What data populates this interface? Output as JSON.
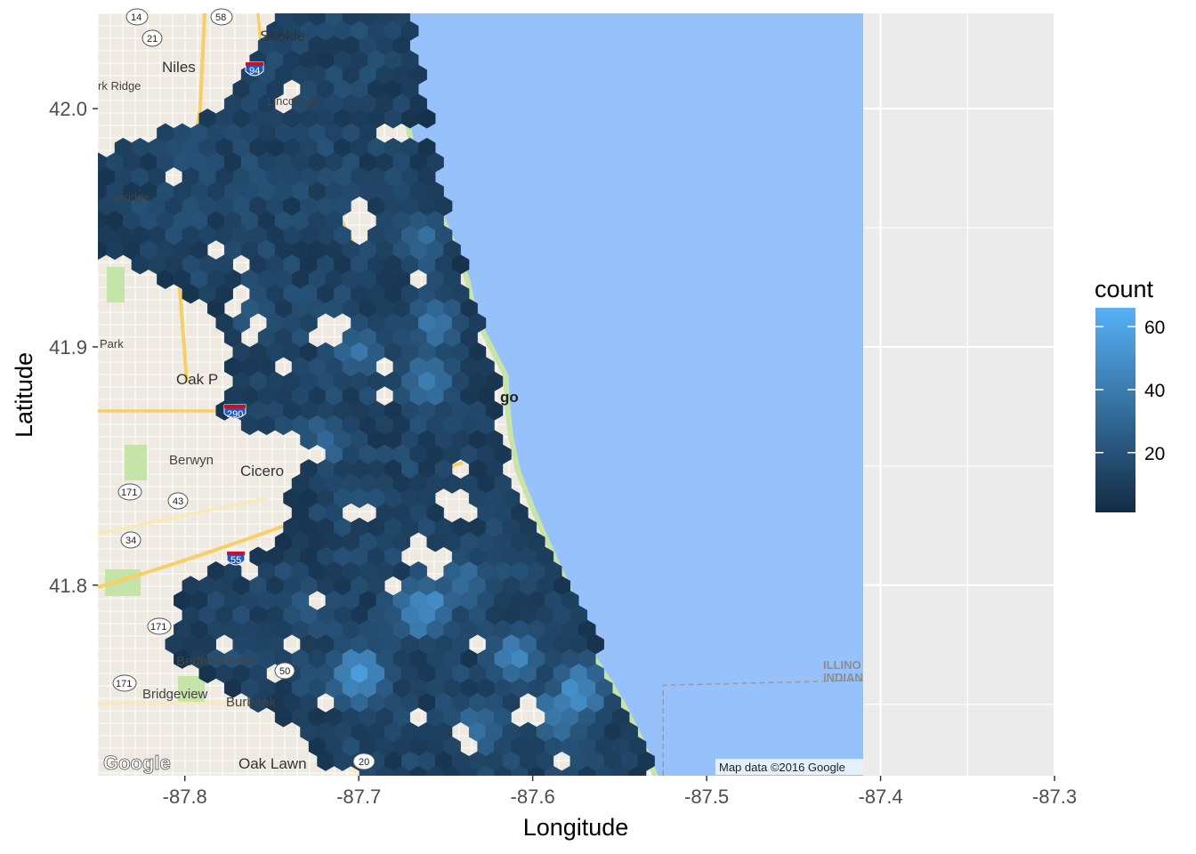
{
  "chart_data": {
    "type": "heatmap",
    "subtype": "hexbin-over-map",
    "xlabel": "Longitude",
    "ylabel": "Latitude",
    "xlim": [
      -87.85,
      -87.3
    ],
    "ylim": [
      41.72,
      42.04
    ],
    "x_ticks": [
      -87.8,
      -87.7,
      -87.6,
      -87.5,
      -87.4,
      -87.3
    ],
    "y_ticks": [
      41.8,
      41.9,
      42.0
    ],
    "x_tick_labels": [
      "-87.8",
      "-87.7",
      "-87.6",
      "-87.5",
      "-87.4",
      "-87.3"
    ],
    "y_tick_labels": [
      "41.8",
      "41.9",
      "42.0"
    ],
    "legend": {
      "title": "count",
      "placement": "right",
      "breaks": [
        20,
        40,
        60
      ],
      "break_labels": [
        "20",
        "40",
        "60"
      ],
      "range": [
        1,
        66
      ],
      "low_color": "#132B43",
      "high_color": "#56B1F7"
    },
    "map_extent": {
      "lon": [
        -87.85,
        -87.41
      ],
      "lat": [
        41.72,
        42.04
      ]
    },
    "hex_radius_lon": 0.0056,
    "region": {
      "west_edge": [
        [
          42.04,
          -87.75
        ],
        [
          42.0,
          -87.78
        ],
        [
          41.98,
          -87.85
        ],
        [
          41.94,
          -87.85
        ],
        [
          41.92,
          -87.79
        ],
        [
          41.9,
          -87.77
        ],
        [
          41.87,
          -87.78
        ],
        [
          41.86,
          -87.73
        ],
        [
          41.84,
          -87.74
        ],
        [
          41.82,
          -87.74
        ],
        [
          41.8,
          -87.8
        ],
        [
          41.77,
          -87.81
        ],
        [
          41.74,
          -87.74
        ],
        [
          41.72,
          -87.71
        ]
      ],
      "east_edge": [
        [
          42.04,
          -87.67
        ],
        [
          42.0,
          -87.66
        ],
        [
          41.96,
          -87.65
        ],
        [
          41.92,
          -87.635
        ],
        [
          41.9,
          -87.625
        ],
        [
          41.88,
          -87.62
        ],
        [
          41.85,
          -87.615
        ],
        [
          41.82,
          -87.595
        ],
        [
          41.79,
          -87.57
        ],
        [
          41.76,
          -87.555
        ],
        [
          41.74,
          -87.545
        ],
        [
          41.72,
          -87.53
        ]
      ]
    },
    "hotspots": [
      {
        "lon": -87.655,
        "lat": 41.91,
        "count": 45
      },
      {
        "lon": -87.662,
        "lat": 41.945,
        "count": 42
      },
      {
        "lon": -87.66,
        "lat": 41.886,
        "count": 50
      },
      {
        "lon": -87.7,
        "lat": 41.898,
        "count": 40
      },
      {
        "lon": -87.765,
        "lat": 41.91,
        "count": 30
      },
      {
        "lon": -87.663,
        "lat": 41.79,
        "count": 60
      },
      {
        "lon": -87.7,
        "lat": 41.762,
        "count": 64
      },
      {
        "lon": -87.57,
        "lat": 41.757,
        "count": 62
      },
      {
        "lon": -87.61,
        "lat": 41.77,
        "count": 48
      },
      {
        "lon": -87.585,
        "lat": 41.745,
        "count": 50
      },
      {
        "lon": -87.64,
        "lat": 41.8,
        "count": 40
      },
      {
        "lon": -87.72,
        "lat": 41.86,
        "count": 38
      },
      {
        "lon": -87.63,
        "lat": 41.74,
        "count": 42
      },
      {
        "lon": -87.73,
        "lat": 41.79,
        "count": 30
      }
    ],
    "holes": [
      {
        "lon": -87.672,
        "lat": 41.99
      },
      {
        "lon": -87.7,
        "lat": 41.95
      },
      {
        "lon": -87.77,
        "lat": 41.92
      },
      {
        "lon": -87.715,
        "lat": 41.905
      },
      {
        "lon": -87.645,
        "lat": 41.832
      },
      {
        "lon": -87.668,
        "lat": 41.815
      },
      {
        "lon": -87.658,
        "lat": 41.808
      },
      {
        "lon": -87.738,
        "lat": 41.775
      },
      {
        "lon": -87.7,
        "lat": 41.83
      },
      {
        "lon": -87.76,
        "lat": 41.905
      }
    ]
  },
  "map": {
    "water_color": "#97C1FA",
    "land_color": "#EEEAE2",
    "park_color": "#C6E3A8",
    "labels": {
      "skokie": "Skokie",
      "niles": "Niles",
      "park_ridge": "rk Ridge",
      "lincolnwood": "Lincolnwo",
      "norridge": "orridge",
      "park": "Park",
      "oak_park": "Oak P",
      "chicago": "go",
      "berwyn": "Berwyn",
      "cicero": "Cicero",
      "bedford_park": "Bedford Park",
      "bridgeview": "Bridgeview",
      "burbank": "Burbank",
      "oak_lawn": "Oak Lawn",
      "illinois": "ILLINO",
      "indiana": "INDIAN"
    },
    "shields": {
      "s14": "14",
      "s58": "58",
      "s21": "21",
      "i94": "94",
      "i290": "290",
      "s171a": "171",
      "s43": "43",
      "s34": "34",
      "i55": "55",
      "s171b": "171",
      "s50": "50",
      "s171c": "171",
      "s20": "20"
    },
    "attribution": "Map data ©2016 Google",
    "google_logo": "Google"
  }
}
